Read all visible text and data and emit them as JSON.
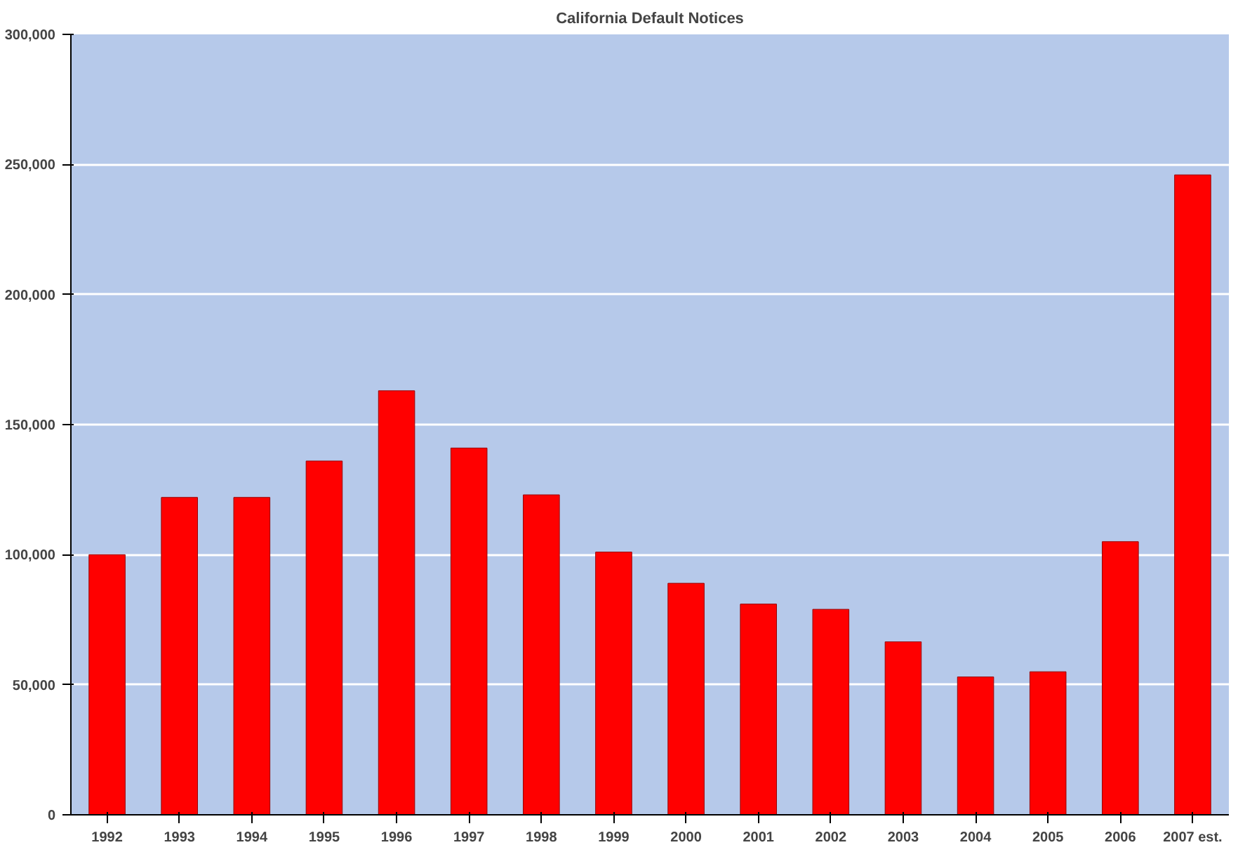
{
  "chart_data": {
    "type": "bar",
    "title": "California Default Notices",
    "categories": [
      "1992",
      "1993",
      "1994",
      "1995",
      "1996",
      "1997",
      "1998",
      "1999",
      "2000",
      "2001",
      "2002",
      "2003",
      "2004",
      "2005",
      "2006",
      "2007 est."
    ],
    "values": [
      100000,
      122000,
      122000,
      136000,
      163000,
      141000,
      123000,
      101000,
      89000,
      81000,
      79000,
      66500,
      53000,
      55000,
      105000,
      246000
    ],
    "color": "#ff0000",
    "ylim": [
      0,
      300000
    ],
    "yticks": [
      {
        "value": 0,
        "label": "0"
      },
      {
        "value": 50000,
        "label": "50,000"
      },
      {
        "value": 100000,
        "label": "100,000"
      },
      {
        "value": 150000,
        "label": "150,000"
      },
      {
        "value": 200000,
        "label": "200,000"
      },
      {
        "value": 250000,
        "label": "250,000"
      },
      {
        "value": 300000,
        "label": "300,000"
      }
    ],
    "grid": "y"
  }
}
